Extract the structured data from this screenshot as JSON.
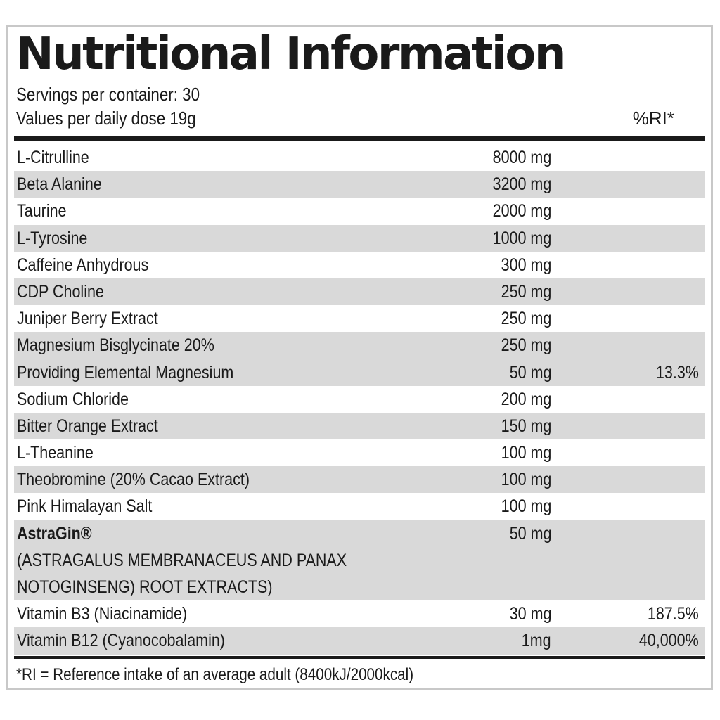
{
  "label": {
    "title": "Nutritional Information",
    "servings": "Servings per container: 30",
    "values_per": "Values per daily dose 19g",
    "ri_header": "%RI*",
    "footnote": "*RI = Reference intake of an average adult (8400kJ/2000kcal)"
  },
  "rows": [
    {
      "name": "L-Citrulline",
      "amount": "8000 mg",
      "ri": ""
    },
    {
      "name": "Beta Alanine",
      "amount": "3200 mg",
      "ri": ""
    },
    {
      "name": "Taurine",
      "amount": "2000 mg",
      "ri": ""
    },
    {
      "name": "L-Tyrosine",
      "amount": "1000 mg",
      "ri": ""
    },
    {
      "name": "Caffeine Anhydrous",
      "amount": "300 mg",
      "ri": ""
    },
    {
      "name": "CDP Choline",
      "amount": "250 mg",
      "ri": ""
    },
    {
      "name": "Juniper Berry Extract",
      "amount": "250 mg",
      "ri": ""
    },
    {
      "name": "Magnesium Bisglycinate 20%",
      "amount": "250 mg",
      "ri": ""
    },
    {
      "name": "Providing Elemental Magnesium",
      "amount": "50 mg",
      "ri": "13.3%"
    },
    {
      "name": "Sodium Chloride",
      "amount": "200 mg",
      "ri": ""
    },
    {
      "name": "Bitter Orange Extract",
      "amount": "150 mg",
      "ri": ""
    },
    {
      "name": "L-Theanine",
      "amount": "100 mg",
      "ri": ""
    },
    {
      "name": "Theobromine (20% Cacao Extract)",
      "amount": "100 mg",
      "ri": ""
    },
    {
      "name": "Pink Himalayan Salt",
      "amount": "100 mg",
      "ri": ""
    }
  ],
  "astragin": {
    "name": "AstraGin®",
    "amount": "50 mg",
    "sub_line1": "(ASTRAGALUS MEMBRANACEUS AND PANAX",
    "sub_line2": "NOTOGINSENG) ROOT EXTRACTS)"
  },
  "vitamins": [
    {
      "name": "Vitamin B3 (Niacinamide)",
      "amount": "30 mg",
      "ri": "187.5%"
    },
    {
      "name": "Vitamin B12 (Cyanocobalamin)",
      "amount": "1mg",
      "ri": "40,000%"
    }
  ],
  "colors": {
    "text": "#1a1a1a",
    "row_shade": "#d9d9d9",
    "border": "#c8c8c8"
  }
}
